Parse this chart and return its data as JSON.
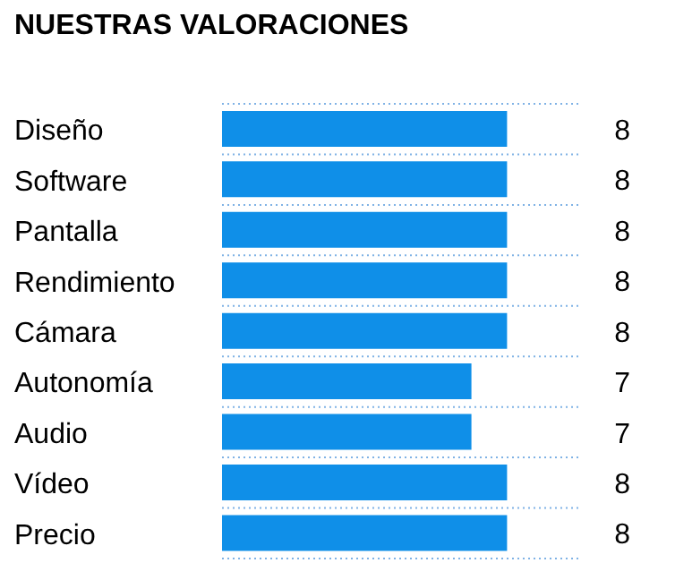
{
  "chart_data": {
    "type": "bar",
    "orientation": "horizontal",
    "title": "NUESTRAS VALORACIONES",
    "categories": [
      "Diseño",
      "Software",
      "Pantalla",
      "Rendimiento",
      "Cámara",
      "Autonomía",
      "Audio",
      "Vídeo",
      "Precio"
    ],
    "values": [
      8,
      8,
      8,
      8,
      8,
      7,
      7,
      8,
      8
    ],
    "color": "#0f8fe8",
    "xlim": [
      0,
      10
    ],
    "tick_labels": "y",
    "data_labels": true,
    "grid": "y"
  }
}
